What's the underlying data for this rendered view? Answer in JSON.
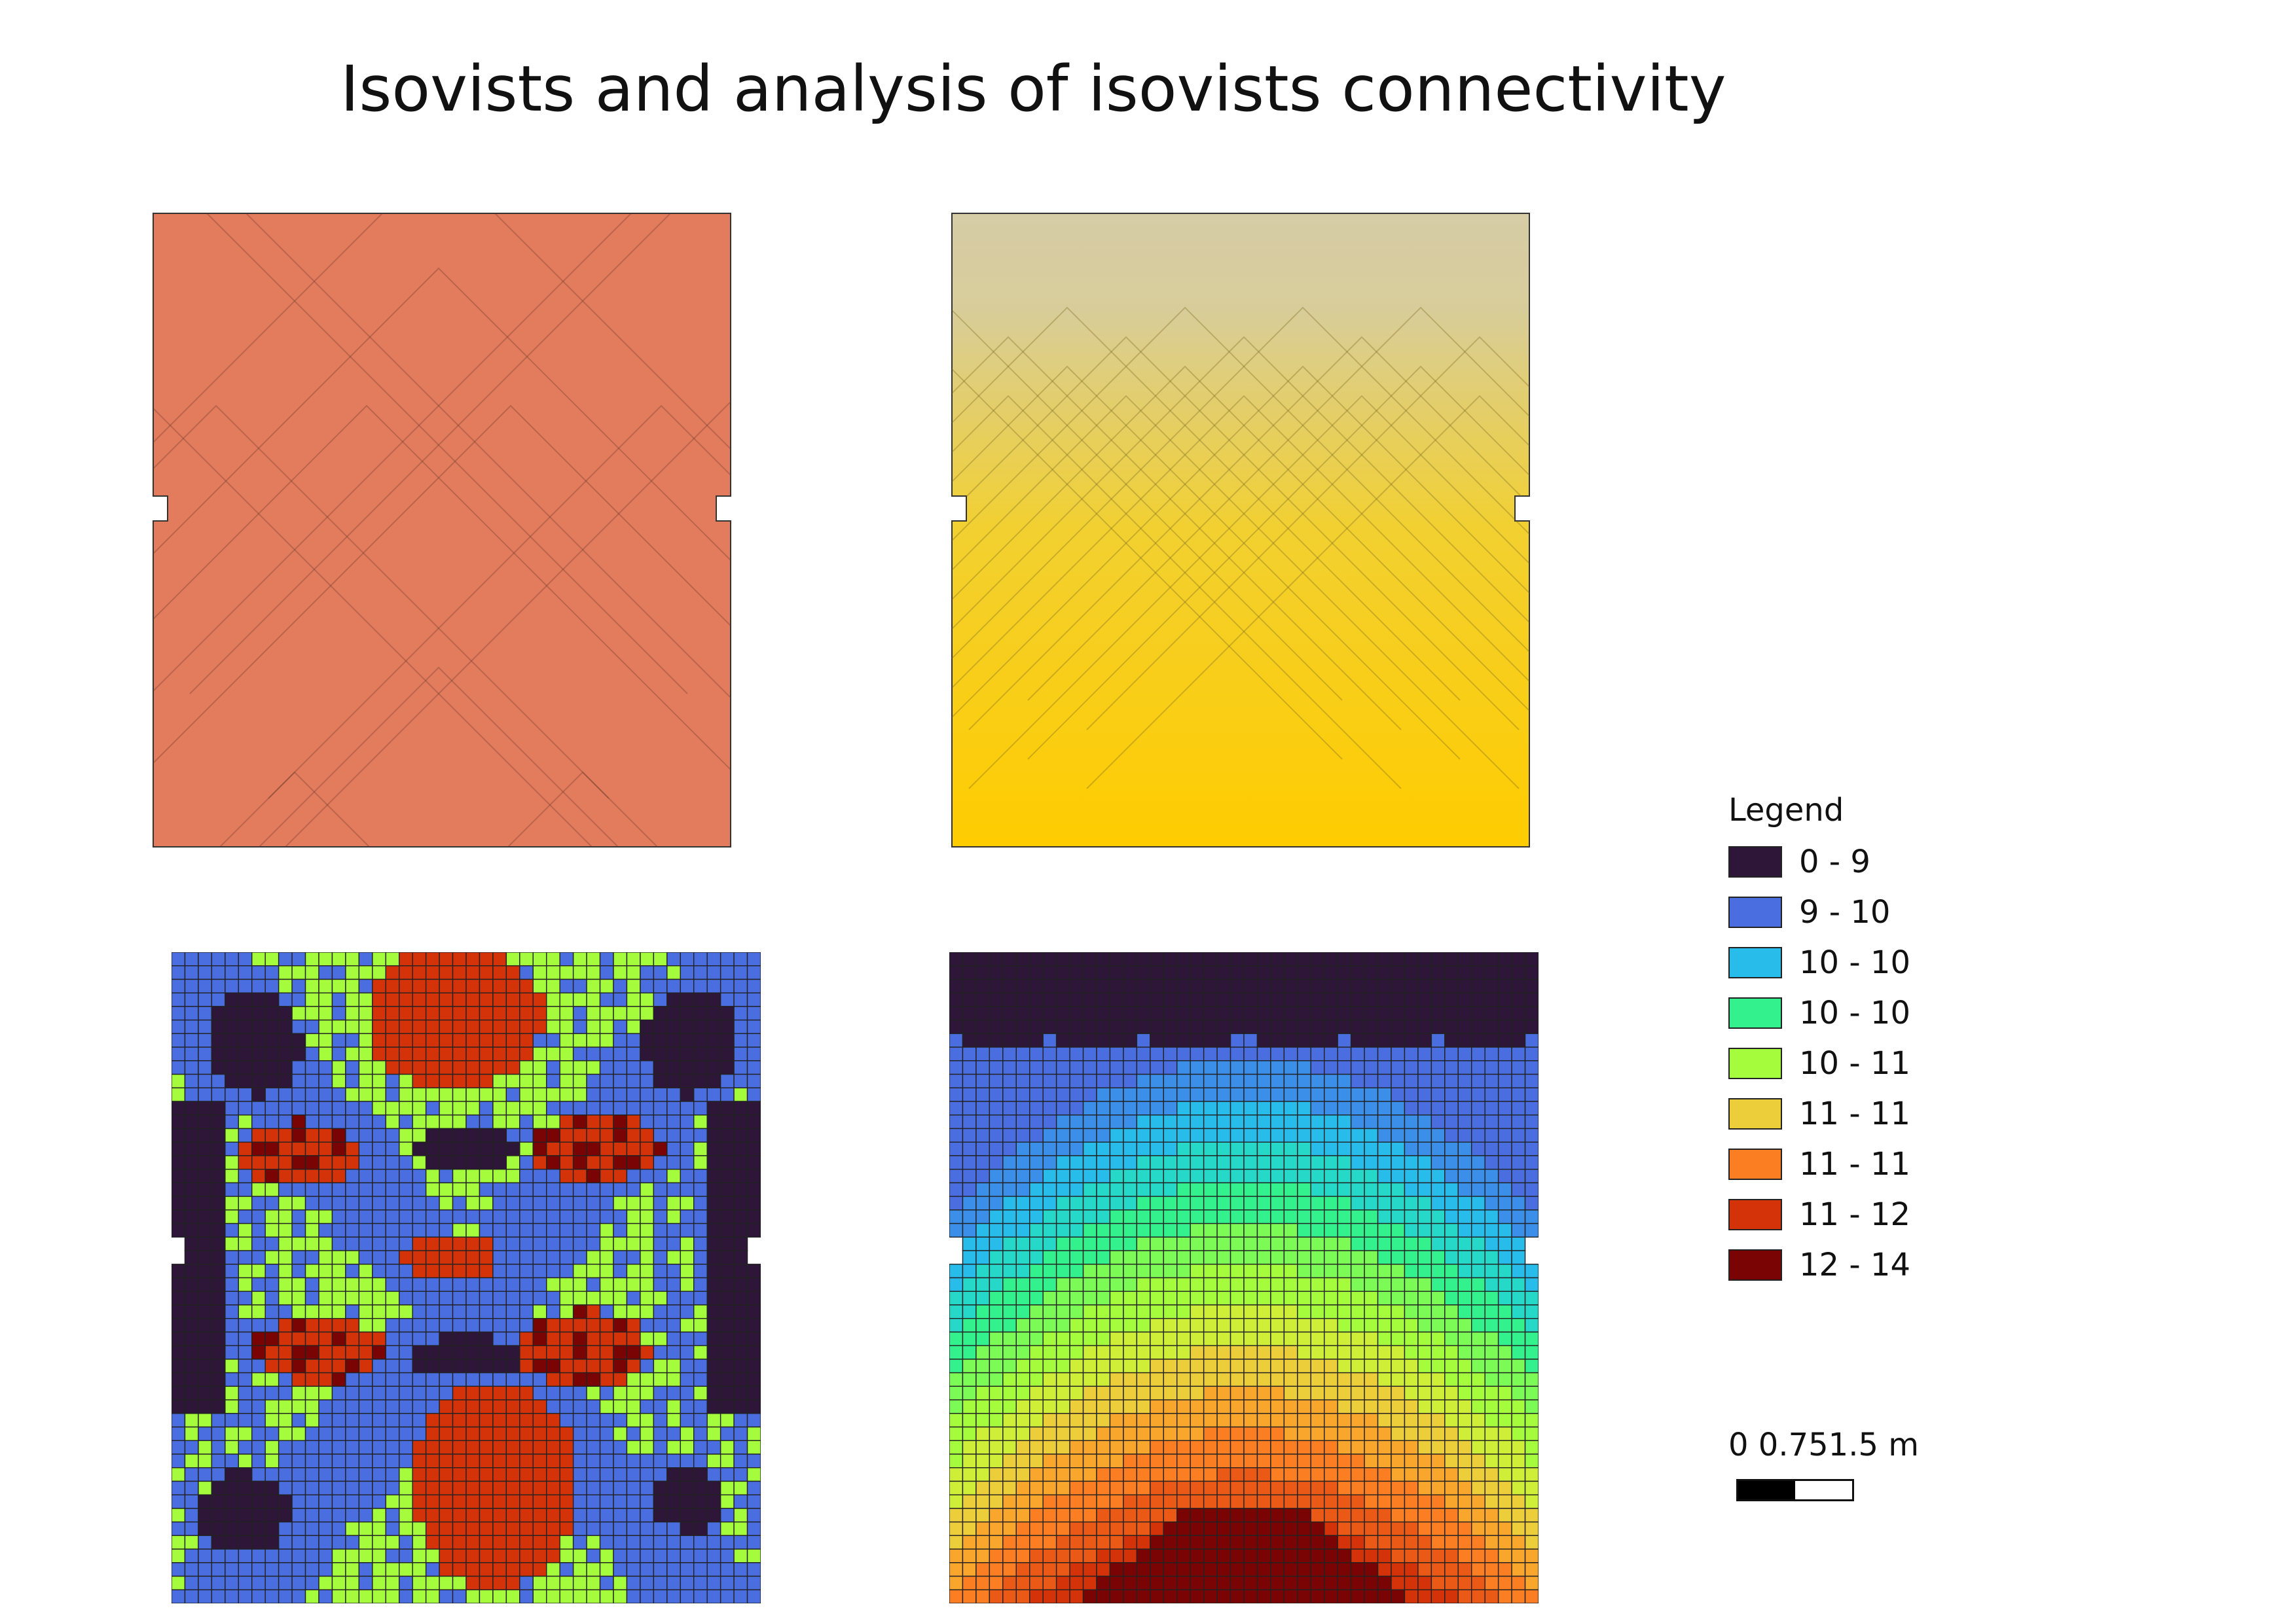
{
  "title": "Isovists and analysis of isovists connectivity",
  "legend": {
    "title": "Legend",
    "classes": [
      {
        "label": "0 - 9",
        "color": "#2d1638"
      },
      {
        "label": "9 - 10",
        "color": "#4a6ee0"
      },
      {
        "label": "10 - 10",
        "color": "#28bceb"
      },
      {
        "label": "10 - 10",
        "color": "#33f28e"
      },
      {
        "label": "10 - 11",
        "color": "#a4fc3c"
      },
      {
        "label": "11 - 11",
        "color": "#eccd3a"
      },
      {
        "label": "11 - 11",
        "color": "#fb7f22"
      },
      {
        "label": "11 - 12",
        "color": "#d4330a"
      },
      {
        "label": "12 - 14",
        "color": "#7a0403"
      }
    ]
  },
  "scalebar": {
    "labels": "0  0.751.5 m"
  },
  "colors": {
    "isovist_overlay_red": "#e8795c",
    "isovist_overlay_top": "#d6cca6",
    "isovist_overlay_bottom": "#ffcc00"
  }
}
